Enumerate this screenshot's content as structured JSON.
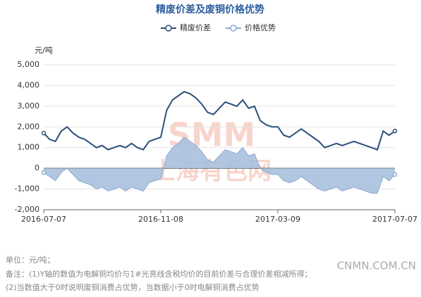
{
  "chart_data": {
    "type": "line",
    "title": "精废价差及废铜价格优势",
    "y_label": "元/吨",
    "categories": [
      "2016-07-07",
      null,
      null,
      null,
      null,
      null,
      null,
      null,
      null,
      null,
      null,
      null,
      null,
      null,
      null,
      null,
      null,
      null,
      null,
      null,
      "2016-11-08",
      null,
      null,
      null,
      null,
      null,
      null,
      null,
      null,
      null,
      null,
      null,
      null,
      null,
      null,
      null,
      null,
      null,
      null,
      null,
      "2017-03-09",
      null,
      null,
      null,
      null,
      null,
      null,
      null,
      null,
      null,
      null,
      null,
      null,
      null,
      null,
      null,
      null,
      null,
      null,
      null,
      "2017-07-07"
    ],
    "series": [
      {
        "name": "精废价差",
        "color": "#2c4f7c",
        "fill": "none",
        "values": [
          1700,
          1400,
          1300,
          1800,
          2000,
          1700,
          1500,
          1400,
          1200,
          1000,
          1100,
          900,
          1000,
          1100,
          1000,
          1200,
          1000,
          900,
          1300,
          1400,
          1500,
          2800,
          3300,
          3500,
          3700,
          3600,
          3400,
          3100,
          2700,
          2600,
          2900,
          3200,
          3100,
          3000,
          3300,
          2900,
          3000,
          2300,
          2100,
          2000,
          2000,
          1600,
          1500,
          1700,
          1900,
          1700,
          1500,
          1300,
          1000,
          1100,
          1200,
          1100,
          1200,
          1300,
          1200,
          1100,
          1000,
          900,
          1800,
          1600,
          1800
        ]
      },
      {
        "name": "价格优势",
        "color": "#8aa9cf",
        "fill": "#a9c0dd",
        "values": [
          -200,
          -400,
          -600,
          -200,
          0,
          -300,
          -600,
          -700,
          -800,
          -1000,
          -900,
          -1100,
          -1000,
          -900,
          -1100,
          -900,
          -1000,
          -1100,
          -700,
          -600,
          -500,
          600,
          1000,
          1200,
          1500,
          1300,
          1100,
          800,
          400,
          300,
          600,
          900,
          800,
          700,
          1000,
          600,
          700,
          0,
          -200,
          -300,
          -300,
          -600,
          -700,
          -600,
          -400,
          -600,
          -800,
          -1000,
          -1100,
          -1000,
          -900,
          -1100,
          -1000,
          -900,
          -1000,
          -1100,
          -1200,
          -1200,
          -400,
          -600,
          -300
        ]
      }
    ],
    "ylim": [
      -2000,
      5000
    ],
    "yticks": [
      {
        "value": -2000,
        "label": "-2,000"
      },
      {
        "value": -1000,
        "label": "-1,000"
      },
      0,
      {
        "value": 1000,
        "label": "1,000"
      },
      {
        "value": 2000,
        "label": "2,000"
      },
      {
        "value": 3000,
        "label": "3,000"
      },
      {
        "value": 4000,
        "label": "4,000"
      },
      {
        "value": 5000,
        "label": "5,000"
      }
    ],
    "grid": true,
    "watermark": [
      "SMM",
      "上海有色网"
    ]
  },
  "footer": {
    "notes": [
      "单位：元/吨；",
      "备注：(1)Y轴的数值为电解铜均价与1#光亮线含税均价的目前价差与合理价差相减所得；",
      "(2)当数值大于0时说明废铜消费占优势，当数据小于0时电解铜消费占优势"
    ],
    "source": "CNMN.COM.CN"
  }
}
